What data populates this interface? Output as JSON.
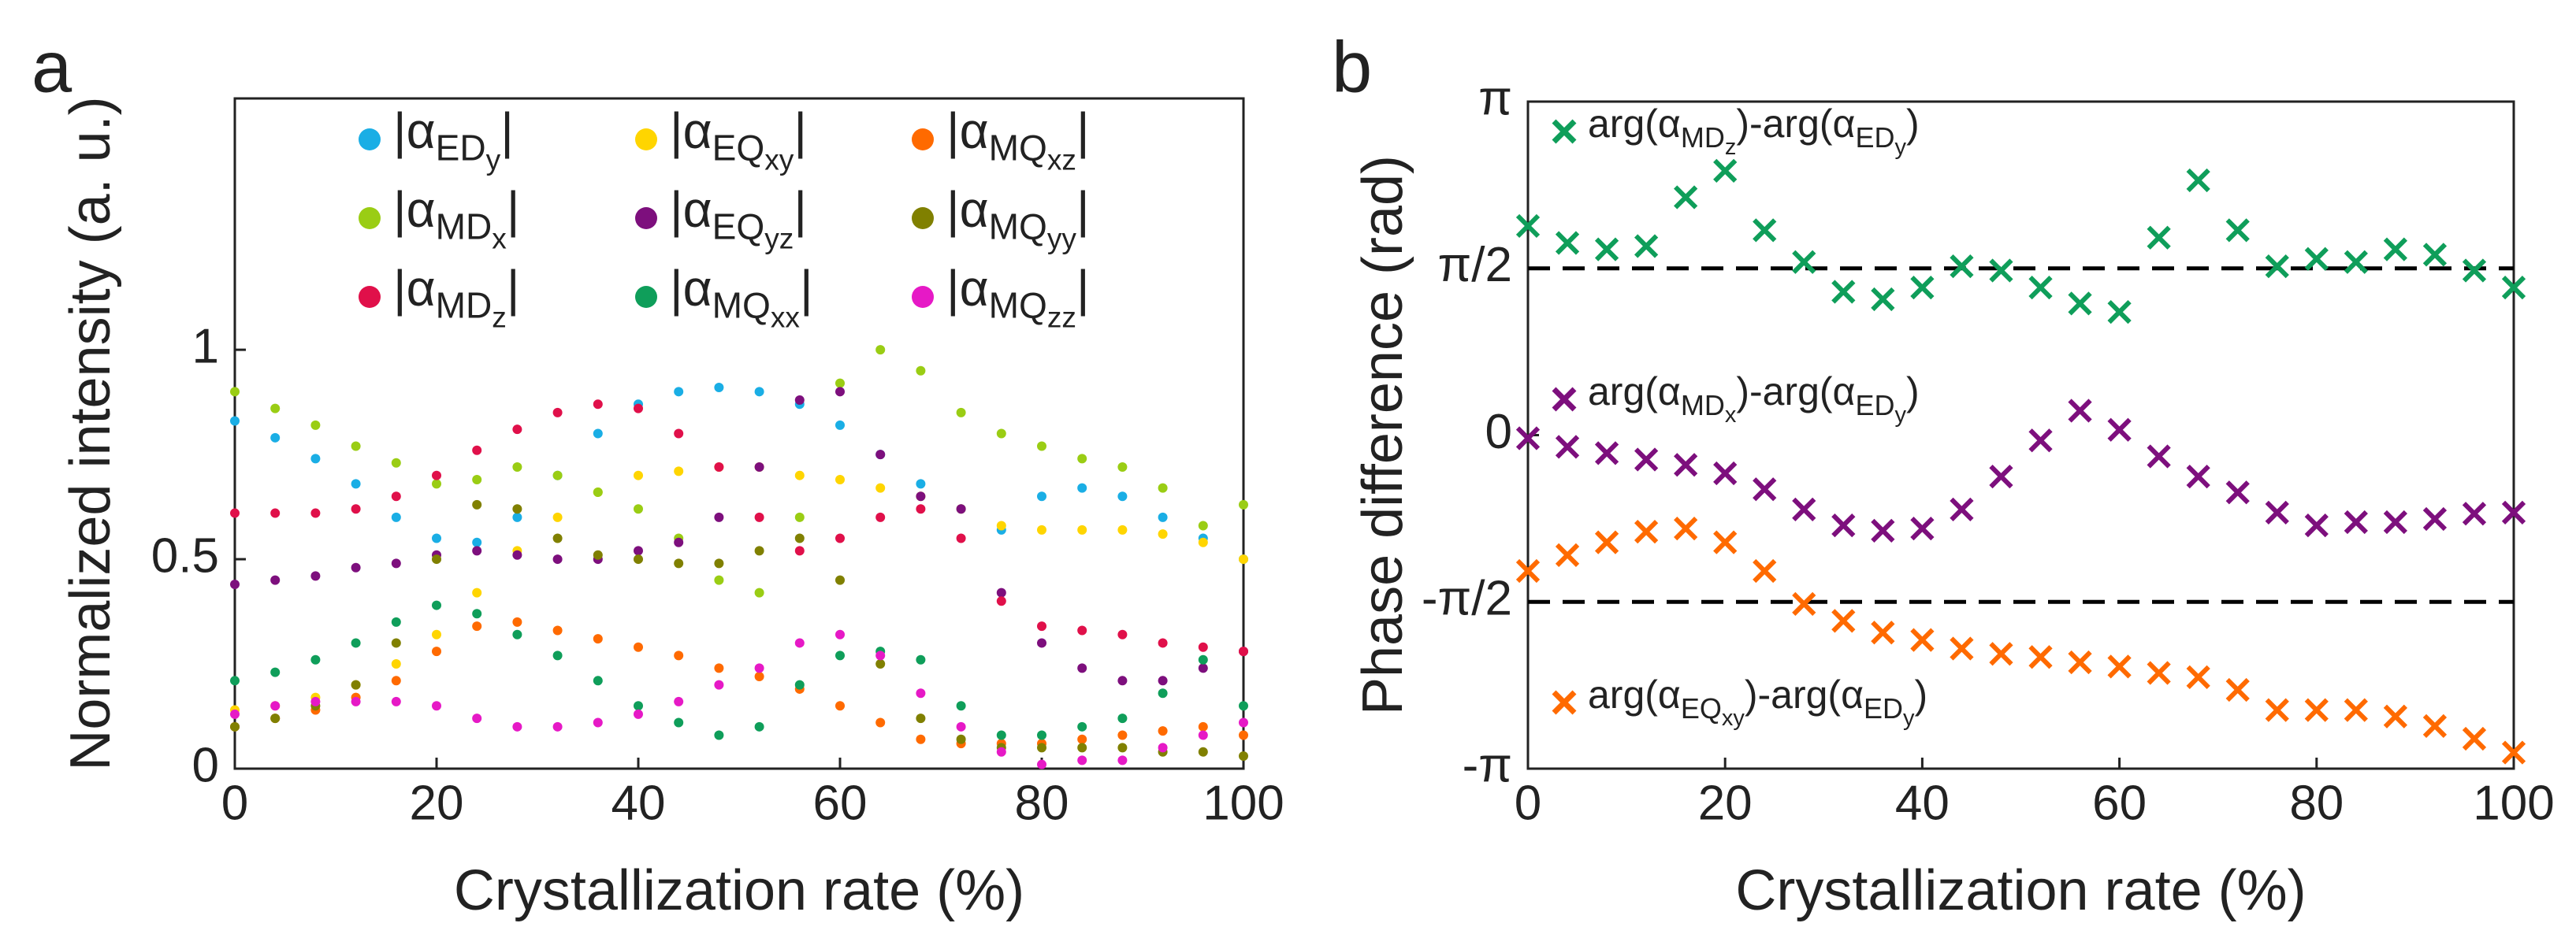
{
  "chart_data": [
    {
      "type": "scatter",
      "marker": "dot",
      "panel_label": "a",
      "xlabel": "Crystallization rate (%)",
      "ylabel": "Normalized intensity (a. u.)",
      "xlim": [
        0,
        100
      ],
      "ylim": [
        0,
        1.6
      ],
      "xticks": [
        0,
        20,
        40,
        60,
        80,
        100
      ],
      "yticks": [
        0,
        0.5,
        1
      ],
      "x": [
        0,
        4,
        8,
        12,
        16,
        20,
        24,
        28,
        32,
        36,
        40,
        44,
        48,
        52,
        56,
        60,
        64,
        68,
        72,
        76,
        80,
        84,
        88,
        92,
        96,
        100
      ],
      "series": [
        {
          "name": "|αEDy|",
          "color": "#1aaee5",
          "values": [
            0.83,
            0.79,
            0.74,
            0.68,
            0.6,
            0.55,
            0.54,
            0.6,
            0.7,
            0.8,
            0.87,
            0.9,
            0.91,
            0.9,
            0.87,
            0.82,
            0.75,
            0.68,
            0.62,
            0.57,
            0.65,
            0.67,
            0.65,
            0.6,
            0.55,
            0.5
          ]
        },
        {
          "name": "|αEQxy|",
          "color": "#ffd500",
          "values": [
            0.14,
            0.15,
            0.17,
            0.2,
            0.25,
            0.32,
            0.42,
            0.52,
            0.6,
            0.66,
            0.7,
            0.71,
            0.72,
            0.72,
            0.7,
            0.69,
            0.67,
            0.65,
            0.62,
            0.58,
            0.57,
            0.57,
            0.57,
            0.56,
            0.54,
            0.5
          ]
        },
        {
          "name": "|αMQxz|",
          "color": "#ff6a00",
          "values": [
            0.1,
            0.12,
            0.14,
            0.17,
            0.21,
            0.28,
            0.34,
            0.35,
            0.33,
            0.31,
            0.29,
            0.27,
            0.24,
            0.22,
            0.19,
            0.15,
            0.11,
            0.07,
            0.06,
            0.06,
            0.06,
            0.07,
            0.08,
            0.09,
            0.1,
            0.08
          ]
        },
        {
          "name": "|αMDx|",
          "color": "#9acd14",
          "values": [
            0.9,
            0.86,
            0.82,
            0.77,
            0.73,
            0.68,
            0.69,
            0.72,
            0.7,
            0.66,
            0.62,
            0.55,
            0.45,
            0.42,
            0.6,
            0.92,
            1.0,
            0.95,
            0.85,
            0.8,
            0.77,
            0.74,
            0.72,
            0.67,
            0.58,
            0.63
          ]
        },
        {
          "name": "|αEQyz|",
          "color": "#7d0f7d",
          "values": [
            0.44,
            0.45,
            0.46,
            0.48,
            0.49,
            0.51,
            0.52,
            0.51,
            0.5,
            0.5,
            0.52,
            0.54,
            0.6,
            0.72,
            0.88,
            0.9,
            0.75,
            0.65,
            0.62,
            0.42,
            0.3,
            0.24,
            0.21,
            0.21,
            0.24,
            0.28
          ]
        },
        {
          "name": "|αMQyy|",
          "color": "#808000",
          "values": [
            0.1,
            0.12,
            0.15,
            0.2,
            0.3,
            0.5,
            0.63,
            0.62,
            0.55,
            0.51,
            0.5,
            0.49,
            0.49,
            0.52,
            0.55,
            0.45,
            0.25,
            0.12,
            0.07,
            0.05,
            0.05,
            0.05,
            0.05,
            0.04,
            0.04,
            0.03
          ]
        },
        {
          "name": "|αMDz|",
          "color": "#e0104a",
          "values": [
            0.61,
            0.61,
            0.61,
            0.62,
            0.65,
            0.7,
            0.76,
            0.81,
            0.85,
            0.87,
            0.86,
            0.8,
            0.72,
            0.6,
            0.52,
            0.55,
            0.6,
            0.62,
            0.55,
            0.4,
            0.34,
            0.33,
            0.32,
            0.3,
            0.29,
            0.28
          ]
        },
        {
          "name": "|αMQxx|",
          "color": "#0f9e5a",
          "values": [
            0.21,
            0.23,
            0.26,
            0.3,
            0.35,
            0.39,
            0.37,
            0.32,
            0.27,
            0.21,
            0.15,
            0.11,
            0.08,
            0.1,
            0.2,
            0.27,
            0.28,
            0.26,
            0.15,
            0.08,
            0.08,
            0.1,
            0.12,
            0.18,
            0.26,
            0.15
          ]
        },
        {
          "name": "|αMQzz|",
          "color": "#e619c6",
          "values": [
            0.13,
            0.15,
            0.16,
            0.16,
            0.16,
            0.15,
            0.12,
            0.1,
            0.1,
            0.11,
            0.13,
            0.16,
            0.2,
            0.24,
            0.3,
            0.32,
            0.27,
            0.18,
            0.1,
            0.04,
            0.01,
            0.02,
            0.02,
            0.05,
            0.08,
            0.11
          ]
        }
      ]
    },
    {
      "type": "scatter",
      "marker": "cross",
      "panel_label": "b",
      "xlabel": "Crystallization rate (%)",
      "ylabel": "Phase difference (rad)",
      "xlim": [
        0,
        100
      ],
      "ylim": [
        -3.1416,
        3.1416
      ],
      "xticks": [
        0,
        20,
        40,
        60,
        80,
        100
      ],
      "yticks": [
        {
          "value": -3.1416,
          "label": "-π"
        },
        {
          "value": -1.5708,
          "label": "-π/2"
        },
        0,
        {
          "value": 1.5708,
          "label": "π/2"
        },
        {
          "value": 3.1416,
          "label": "π"
        }
      ],
      "hlines": [
        1.5708,
        -1.5708
      ],
      "x": [
        0,
        4,
        8,
        12,
        16,
        20,
        24,
        28,
        32,
        36,
        40,
        44,
        48,
        52,
        56,
        60,
        64,
        68,
        72,
        76,
        80,
        84,
        88,
        92,
        96,
        100
      ],
      "series": [
        {
          "name": "arg(αMDz)-arg(αEDy)",
          "color": "#0f9e5a",
          "values": [
            1.97,
            1.81,
            1.75,
            1.78,
            2.24,
            2.49,
            1.93,
            1.63,
            1.35,
            1.28,
            1.39,
            1.59,
            1.55,
            1.39,
            1.24,
            1.16,
            1.86,
            2.4,
            1.93,
            1.59,
            1.66,
            1.63,
            1.75,
            1.7,
            1.55,
            1.39
          ]
        },
        {
          "name": "arg(αMDx)-arg(αEDy)",
          "color": "#7d0f7d",
          "values": [
            -0.03,
            -0.11,
            -0.17,
            -0.23,
            -0.28,
            -0.36,
            -0.51,
            -0.7,
            -0.85,
            -0.9,
            -0.88,
            -0.7,
            -0.39,
            -0.05,
            0.23,
            0.05,
            -0.2,
            -0.39,
            -0.54,
            -0.73,
            -0.85,
            -0.82,
            -0.82,
            -0.79,
            -0.74,
            -0.73
          ]
        },
        {
          "name": "arg(αEQxy)-arg(αEDy)",
          "color": "#ff6a00",
          "values": [
            -1.28,
            -1.13,
            -1.01,
            -0.91,
            -0.88,
            -1.01,
            -1.28,
            -1.59,
            -1.75,
            -1.86,
            -1.93,
            -2.01,
            -2.06,
            -2.09,
            -2.14,
            -2.18,
            -2.24,
            -2.28,
            -2.4,
            -2.59,
            -2.59,
            -2.59,
            -2.65,
            -2.74,
            -2.86,
            -2.99
          ]
        }
      ]
    }
  ]
}
